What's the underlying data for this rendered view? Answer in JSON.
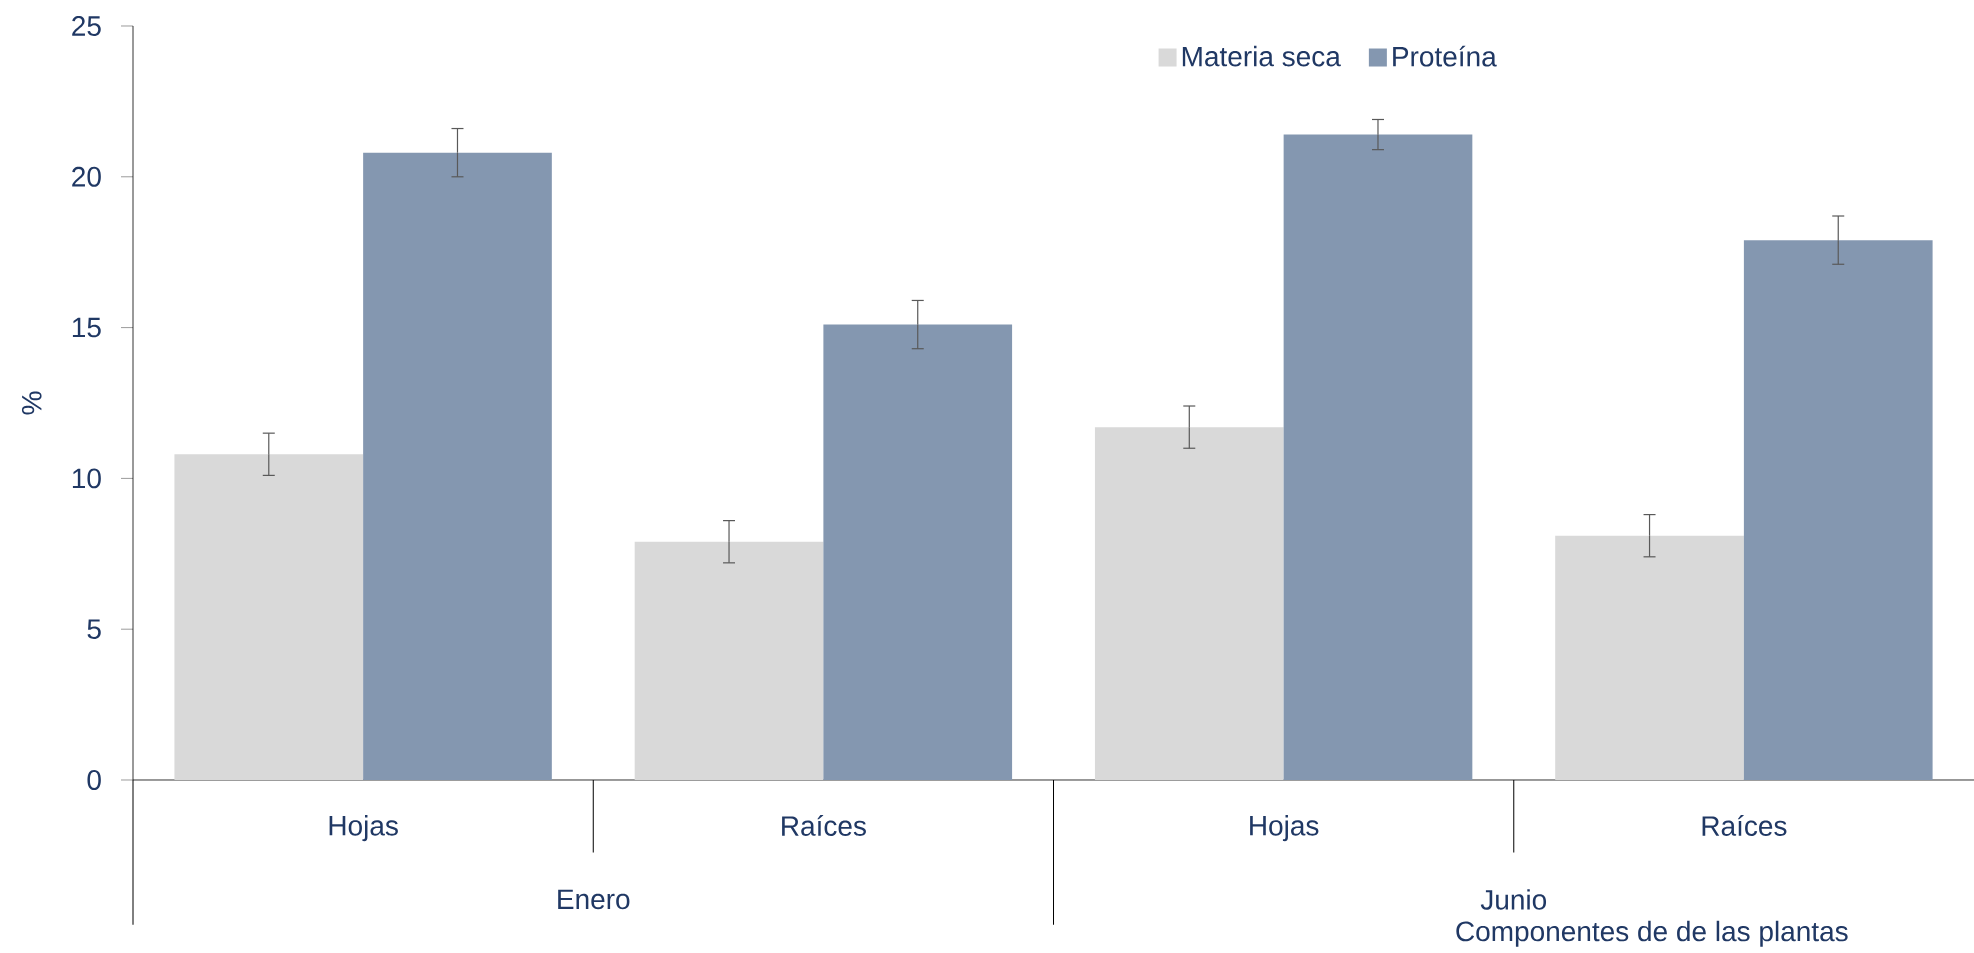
{
  "chart_data": {
    "type": "bar",
    "xlabel": "Componentes de de las plantas",
    "ylabel": "%",
    "categories": [
      "Hojas",
      "Raíces",
      "Hojas",
      "Raíces"
    ],
    "annotations": [
      "Enero",
      "Junio"
    ],
    "series": [
      {
        "name": "Materia seca",
        "color": "#d9d9d9",
        "values": [
          10.8,
          7.9,
          11.7,
          8.1
        ],
        "errors": [
          0.7,
          0.7,
          0.7,
          0.7
        ]
      },
      {
        "name": "Proteína",
        "color": "#8497b0",
        "values": [
          20.8,
          15.1,
          21.4,
          17.9
        ],
        "errors": [
          0.8,
          0.8,
          0.5,
          0.8
        ]
      }
    ],
    "ylim": [
      0,
      25
    ],
    "yticks": [
      0,
      5,
      10,
      15,
      20,
      25
    ],
    "legend": "top",
    "grid": false
  }
}
